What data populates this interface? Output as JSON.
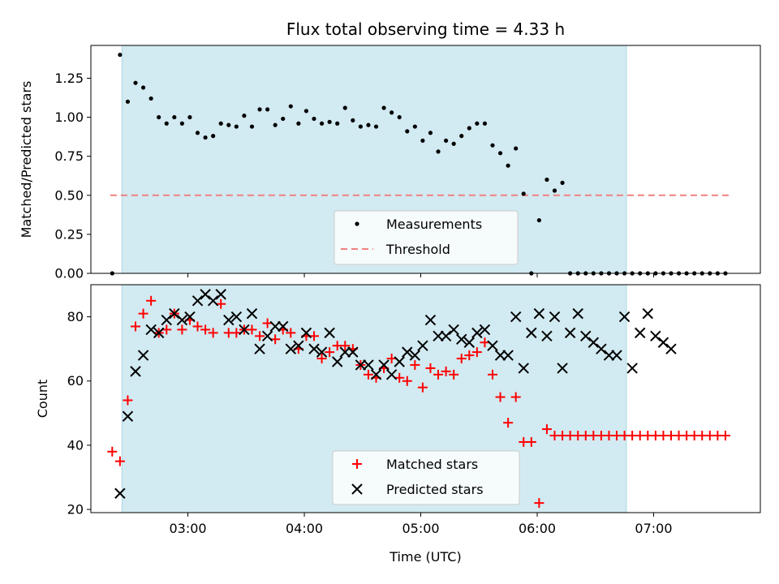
{
  "chart_data": [
    {
      "type": "scatter",
      "title": "Flux total observing time = 4.33 h",
      "xlabel": "",
      "ylabel": "Matched/Predicted stars",
      "xlim": [
        "02:10",
        "07:55"
      ],
      "ylim": [
        0,
        1.46
      ],
      "yticks": [
        0.0,
        0.25,
        0.5,
        0.75,
        1.0,
        1.25
      ],
      "ytick_labels": [
        "0.00",
        "0.25",
        "0.50",
        "0.75",
        "1.00",
        "1.25"
      ],
      "span": {
        "start": "02:26",
        "end": "06:46",
        "color": "#add8e6"
      },
      "legend": {
        "placement": "lower center",
        "entries": [
          "Measurements",
          "Threshold"
        ]
      },
      "threshold": {
        "label": "Threshold",
        "y": 0.5,
        "x": [
          "02:20",
          "07:40"
        ],
        "color": "#f08080"
      },
      "series": [
        {
          "name": "Measurements",
          "x": [
            "02:21",
            "02:25",
            "02:29",
            "02:33",
            "02:37",
            "02:41",
            "02:45",
            "02:49",
            "02:53",
            "02:57",
            "03:01",
            "03:05",
            "03:09",
            "03:13",
            "03:17",
            "03:21",
            "03:25",
            "03:29",
            "03:33",
            "03:37",
            "03:41",
            "03:45",
            "03:49",
            "03:53",
            "03:57",
            "04:01",
            "04:05",
            "04:09",
            "04:13",
            "04:17",
            "04:21",
            "04:25",
            "04:29",
            "04:33",
            "04:37",
            "04:41",
            "04:45",
            "04:49",
            "04:53",
            "04:57",
            "05:01",
            "05:05",
            "05:09",
            "05:13",
            "05:17",
            "05:21",
            "05:25",
            "05:29",
            "05:33",
            "05:37",
            "05:41",
            "05:45",
            "05:49",
            "05:53",
            "05:57",
            "06:01",
            "06:05",
            "06:09",
            "06:13",
            "06:17",
            "06:21",
            "06:25",
            "06:29",
            "06:33",
            "06:37",
            "06:41",
            "06:45",
            "06:49",
            "06:53",
            "06:57",
            "07:01",
            "07:05",
            "07:09",
            "07:13",
            "07:17",
            "07:21",
            "07:25",
            "07:29",
            "07:33",
            "07:37"
          ],
          "y": [
            0.0,
            1.4,
            1.1,
            1.22,
            1.19,
            1.12,
            1.0,
            0.96,
            1.0,
            0.96,
            1.0,
            0.9,
            0.87,
            0.88,
            0.96,
            0.95,
            0.94,
            1.01,
            0.94,
            1.05,
            1.05,
            0.95,
            0.99,
            1.07,
            0.96,
            1.04,
            0.99,
            0.96,
            0.97,
            0.96,
            1.06,
            0.98,
            0.94,
            0.95,
            0.94,
            1.06,
            1.03,
            1.0,
            0.91,
            0.94,
            0.85,
            0.9,
            0.78,
            0.85,
            0.83,
            0.88,
            0.93,
            0.96,
            0.96,
            0.82,
            0.77,
            0.69,
            0.8,
            0.51,
            0.0,
            0.34,
            0.6,
            0.53,
            0.58,
            0.0,
            0.0,
            0.0,
            0.0,
            0.0,
            0.0,
            0.0,
            0.0,
            0.0,
            0.0,
            0.0,
            0.0,
            0.0,
            0.0,
            0.0,
            0.0,
            0.0,
            0.0,
            0.0,
            0.0,
            0.0
          ]
        }
      ]
    },
    {
      "type": "scatter",
      "title": "",
      "xlabel": "Time (UTC)",
      "ylabel": "Count",
      "xlim": [
        "02:10",
        "07:55"
      ],
      "ylim": [
        19,
        90
      ],
      "xticks": [
        "03:00",
        "04:00",
        "05:00",
        "06:00",
        "07:00"
      ],
      "yticks": [
        20,
        40,
        60,
        80
      ],
      "span": {
        "start": "02:26",
        "end": "06:46",
        "color": "#add8e6"
      },
      "legend": {
        "placement": "lower center",
        "entries": [
          "Matched stars",
          "Predicted stars"
        ]
      },
      "series": [
        {
          "name": "Matched stars",
          "marker": "plus",
          "color": "#ff0000",
          "x": [
            "02:21",
            "02:25",
            "02:29",
            "02:33",
            "02:37",
            "02:41",
            "02:45",
            "02:49",
            "02:53",
            "02:57",
            "03:01",
            "03:05",
            "03:09",
            "03:13",
            "03:17",
            "03:21",
            "03:25",
            "03:29",
            "03:33",
            "03:37",
            "03:41",
            "03:45",
            "03:49",
            "03:53",
            "03:57",
            "04:01",
            "04:05",
            "04:09",
            "04:13",
            "04:17",
            "04:21",
            "04:25",
            "04:29",
            "04:33",
            "04:37",
            "04:41",
            "04:45",
            "04:49",
            "04:53",
            "04:57",
            "05:01",
            "05:05",
            "05:09",
            "05:13",
            "05:17",
            "05:21",
            "05:25",
            "05:29",
            "05:33",
            "05:37",
            "05:41",
            "05:45",
            "05:49",
            "05:53",
            "05:57",
            "06:01",
            "06:05",
            "06:09",
            "06:13",
            "06:17",
            "06:21",
            "06:25",
            "06:29",
            "06:33",
            "06:37",
            "06:41",
            "06:45",
            "06:49",
            "06:53",
            "06:57",
            "07:01",
            "07:05",
            "07:09",
            "07:13",
            "07:17",
            "07:21",
            "07:25",
            "07:29",
            "07:33",
            "07:37"
          ],
          "y": [
            38,
            35,
            54,
            77,
            81,
            85,
            75,
            76,
            81,
            76,
            79,
            77,
            76,
            75,
            84,
            75,
            75,
            76,
            76,
            74,
            78,
            73,
            76,
            75,
            70,
            74,
            74,
            67,
            69,
            71,
            71,
            70,
            65,
            62,
            61,
            64,
            67,
            61,
            60,
            65,
            58,
            64,
            62,
            63,
            62,
            67,
            68,
            69,
            72,
            62,
            55,
            47,
            55,
            41,
            41,
            22,
            45,
            43,
            43,
            43,
            43,
            43,
            43,
            43,
            43,
            43,
            43,
            43,
            43,
            43,
            43,
            43,
            43,
            43,
            43,
            43,
            43,
            43,
            43,
            43
          ]
        },
        {
          "name": "Predicted stars",
          "marker": "x",
          "color": "#000000",
          "x": [
            "02:25",
            "02:29",
            "02:33",
            "02:37",
            "02:41",
            "02:45",
            "02:49",
            "02:53",
            "02:57",
            "03:01",
            "03:05",
            "03:09",
            "03:13",
            "03:17",
            "03:21",
            "03:25",
            "03:29",
            "03:33",
            "03:37",
            "03:41",
            "03:45",
            "03:49",
            "03:53",
            "03:57",
            "04:01",
            "04:05",
            "04:09",
            "04:13",
            "04:17",
            "04:21",
            "04:25",
            "04:29",
            "04:33",
            "04:37",
            "04:41",
            "04:45",
            "04:49",
            "04:53",
            "04:57",
            "05:01",
            "05:05",
            "05:09",
            "05:13",
            "05:17",
            "05:21",
            "05:25",
            "05:29",
            "05:33",
            "05:37",
            "05:41",
            "05:45",
            "05:49",
            "05:53",
            "05:57",
            "06:01",
            "06:05",
            "06:09",
            "06:13",
            "06:17",
            "06:21",
            "06:25",
            "06:29",
            "06:33",
            "06:37",
            "06:41",
            "06:45",
            "06:49",
            "06:53",
            "06:57",
            "07:01",
            "07:05",
            "07:09"
          ],
          "y": [
            25,
            49,
            63,
            68,
            76,
            75,
            79,
            81,
            79,
            80,
            85,
            87,
            85,
            87,
            79,
            80,
            76,
            81,
            70,
            74,
            77,
            77,
            70,
            71,
            75,
            70,
            69,
            75,
            66,
            69,
            69,
            65,
            65,
            62,
            65,
            62,
            66,
            69,
            68,
            71,
            79,
            74,
            74,
            76,
            73,
            72,
            75,
            76,
            71,
            68,
            68,
            80,
            64,
            75,
            81,
            74,
            80,
            64,
            75,
            81,
            74,
            72,
            70,
            68,
            68,
            80,
            64,
            75,
            81,
            74,
            72,
            70
          ]
        }
      ]
    }
  ]
}
